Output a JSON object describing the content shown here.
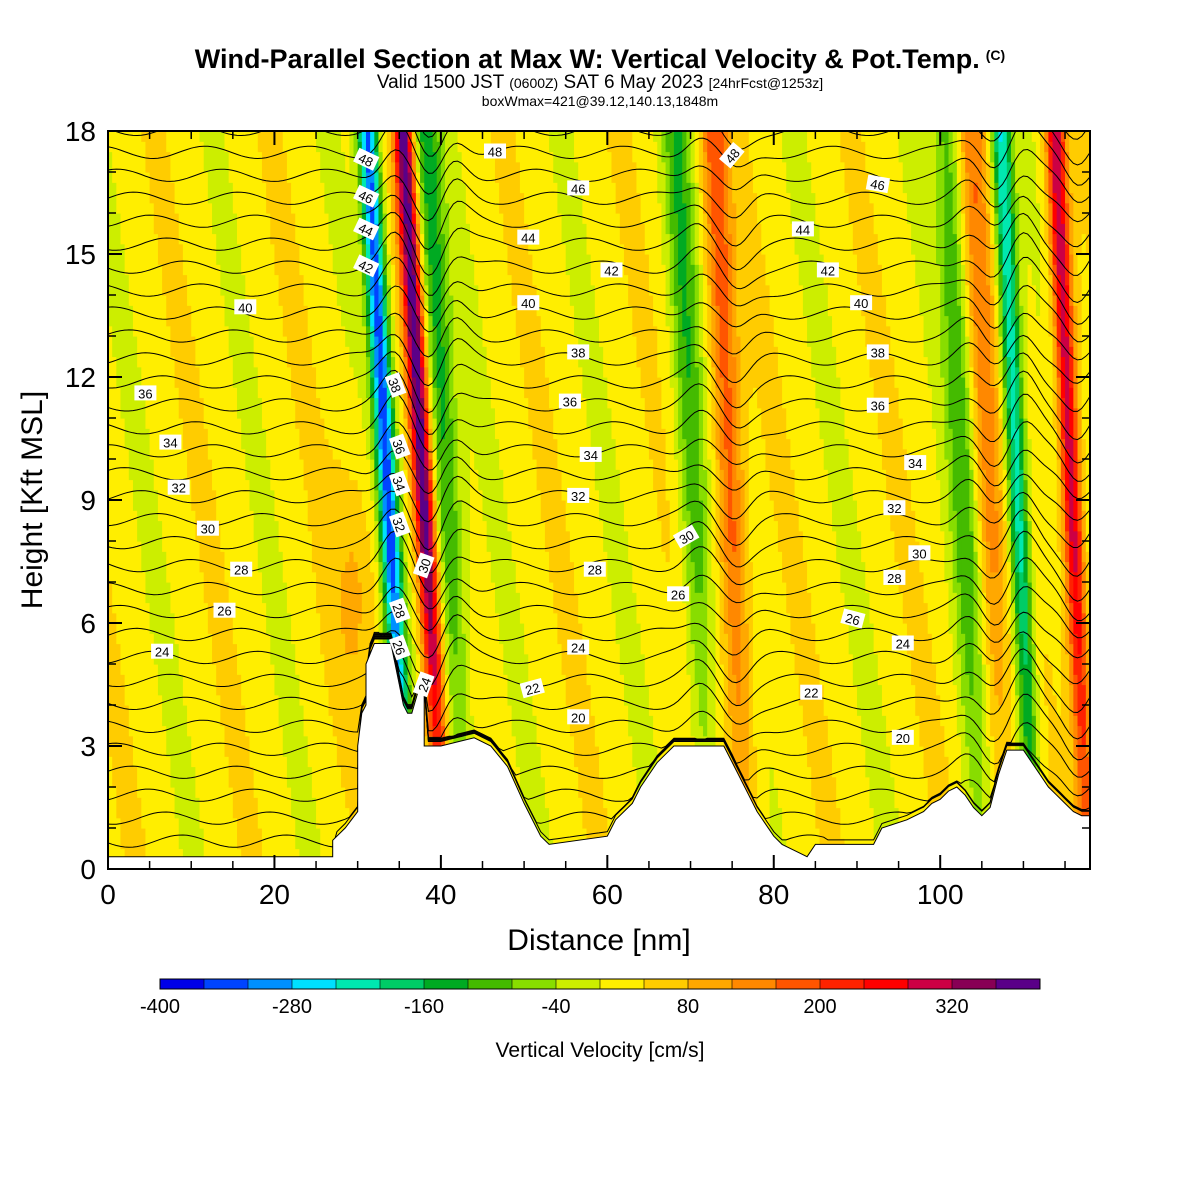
{
  "title": {
    "main": "Wind-Parallel Section at Max W: Vertical Velocity & Pot.Temp.",
    "copyright": "(C)",
    "valid_a": "Valid 1500 JST",
    "valid_zulu": "(0600Z)",
    "valid_b": "SAT 6 May 2023",
    "forecast": "[24hrFcst@1253z]",
    "box": "boxWmax=421@39.12,140.13,1848m"
  },
  "chart_data": {
    "type": "heatmap",
    "xlabel": "Distance [nm]",
    "ylabel": "Height [Kft MSL]",
    "xlim": [
      0,
      118
    ],
    "ylim": [
      0,
      18
    ],
    "x_ticks": [
      0,
      20,
      40,
      60,
      80,
      100
    ],
    "y_ticks": [
      0,
      3,
      6,
      9,
      12,
      15,
      18
    ],
    "colorbar": {
      "label": "Vertical Velocity [cm/s]",
      "tick_labels": [
        "-400",
        "-280",
        "-160",
        "-40",
        "80",
        "200",
        "320"
      ],
      "colors": [
        "#0000e8",
        "#0044ff",
        "#0090ff",
        "#00e0ff",
        "#00e8b0",
        "#00cc66",
        "#00aa22",
        "#44bb00",
        "#88dd00",
        "#ccee00",
        "#ffee00",
        "#ffcc00",
        "#ffa800",
        "#ff8800",
        "#ff5500",
        "#ff2200",
        "#ff0000",
        "#cc0044",
        "#880055",
        "#5a0088"
      ]
    },
    "w_bands": [
      {
        "x": 34.5,
        "peak": -360
      },
      {
        "x": 38.8,
        "peak": 360
      },
      {
        "x": 41.5,
        "peak": -160
      },
      {
        "x": 71.0,
        "peak": -130
      },
      {
        "x": 75.5,
        "peak": 170
      },
      {
        "x": 103.5,
        "peak": -120
      },
      {
        "x": 106.5,
        "peak": 120
      },
      {
        "x": 110.0,
        "peak": -260
      },
      {
        "x": 116.5,
        "peak": 300
      }
    ],
    "terrain": [
      [
        0,
        0.3
      ],
      [
        27,
        0.3
      ],
      [
        27,
        0.7
      ],
      [
        28.5,
        1.0
      ],
      [
        30,
        1.4
      ],
      [
        30,
        3.0
      ],
      [
        30.5,
        3.8
      ],
      [
        31,
        4.0
      ],
      [
        31,
        5.0
      ],
      [
        32,
        5.5
      ],
      [
        34,
        5.5
      ],
      [
        34.5,
        5.0
      ],
      [
        35,
        4.5
      ],
      [
        35.5,
        4.0
      ],
      [
        36,
        3.8
      ],
      [
        36.5,
        3.8
      ],
      [
        37.5,
        4.5
      ],
      [
        38,
        4.3
      ],
      [
        38,
        3.0
      ],
      [
        40,
        3.0
      ],
      [
        42,
        3.1
      ],
      [
        44,
        3.2
      ],
      [
        46,
        3.0
      ],
      [
        48,
        2.5
      ],
      [
        50,
        1.6
      ],
      [
        52,
        0.8
      ],
      [
        53,
        0.6
      ],
      [
        60,
        0.8
      ],
      [
        61,
        1.2
      ],
      [
        63,
        1.6
      ],
      [
        64,
        2.0
      ],
      [
        66,
        2.6
      ],
      [
        67,
        2.8
      ],
      [
        68,
        3.0
      ],
      [
        74,
        3.0
      ],
      [
        75,
        2.6
      ],
      [
        76,
        2.2
      ],
      [
        77,
        1.8
      ],
      [
        78,
        1.4
      ],
      [
        80,
        0.8
      ],
      [
        81,
        0.6
      ],
      [
        83,
        0.4
      ],
      [
        84,
        0.3
      ],
      [
        85,
        0.6
      ],
      [
        92,
        0.6
      ],
      [
        93,
        1.0
      ],
      [
        96,
        1.2
      ],
      [
        98,
        1.4
      ],
      [
        99,
        1.6
      ],
      [
        100,
        1.7
      ],
      [
        101,
        1.9
      ],
      [
        102,
        2.0
      ],
      [
        103,
        1.8
      ],
      [
        104,
        1.5
      ],
      [
        105,
        1.3
      ],
      [
        106,
        1.5
      ],
      [
        107,
        2.3
      ],
      [
        108,
        2.9
      ],
      [
        110,
        2.9
      ],
      [
        111,
        2.6
      ],
      [
        112,
        2.3
      ],
      [
        113,
        2.0
      ],
      [
        114,
        1.8
      ],
      [
        115,
        1.6
      ],
      [
        116,
        1.4
      ],
      [
        117,
        1.3
      ],
      [
        118,
        1.3
      ]
    ],
    "isotherm_labels": [
      {
        "text": "48",
        "x": 31.0,
        "y": 17.3,
        "rot": 25
      },
      {
        "text": "48",
        "x": 46.5,
        "y": 17.5,
        "rot": 0
      },
      {
        "text": "48",
        "x": 75.0,
        "y": 17.4,
        "rot": -50
      },
      {
        "text": "46",
        "x": 31.0,
        "y": 16.4,
        "rot": 25
      },
      {
        "text": "46",
        "x": 56.5,
        "y": 16.6,
        "rot": 0
      },
      {
        "text": "46",
        "x": 92.5,
        "y": 16.7,
        "rot": 10
      },
      {
        "text": "44",
        "x": 31.0,
        "y": 15.6,
        "rot": 25
      },
      {
        "text": "44",
        "x": 50.5,
        "y": 15.4,
        "rot": 0
      },
      {
        "text": "44",
        "x": 83.5,
        "y": 15.6,
        "rot": 0
      },
      {
        "text": "42",
        "x": 31.0,
        "y": 14.7,
        "rot": 25
      },
      {
        "text": "42",
        "x": 60.5,
        "y": 14.6,
        "rot": 0
      },
      {
        "text": "42",
        "x": 86.5,
        "y": 14.6,
        "rot": 0
      },
      {
        "text": "40",
        "x": 16.5,
        "y": 13.7,
        "rot": 0
      },
      {
        "text": "40",
        "x": 50.5,
        "y": 13.8,
        "rot": 0
      },
      {
        "text": "40",
        "x": 90.5,
        "y": 13.8,
        "rot": 0
      },
      {
        "text": "38",
        "x": 34.5,
        "y": 11.8,
        "rot": 70
      },
      {
        "text": "38",
        "x": 56.5,
        "y": 12.6,
        "rot": 0
      },
      {
        "text": "38",
        "x": 92.5,
        "y": 12.6,
        "rot": 0
      },
      {
        "text": "36",
        "x": 4.5,
        "y": 11.6,
        "rot": 0
      },
      {
        "text": "36",
        "x": 55.5,
        "y": 11.4,
        "rot": 0
      },
      {
        "text": "36",
        "x": 92.5,
        "y": 11.3,
        "rot": 0
      },
      {
        "text": "36",
        "x": 35.0,
        "y": 10.3,
        "rot": 70
      },
      {
        "text": "34",
        "x": 7.5,
        "y": 10.4,
        "rot": 0
      },
      {
        "text": "34",
        "x": 58.0,
        "y": 10.1,
        "rot": 0
      },
      {
        "text": "34",
        "x": 97.0,
        "y": 9.9,
        "rot": 0
      },
      {
        "text": "34",
        "x": 35.0,
        "y": 9.4,
        "rot": 70
      },
      {
        "text": "32",
        "x": 8.5,
        "y": 9.3,
        "rot": 0
      },
      {
        "text": "32",
        "x": 56.5,
        "y": 9.1,
        "rot": 0
      },
      {
        "text": "32",
        "x": 94.5,
        "y": 8.8,
        "rot": 0
      },
      {
        "text": "32",
        "x": 35.0,
        "y": 8.4,
        "rot": 70
      },
      {
        "text": "30",
        "x": 12.0,
        "y": 8.3,
        "rot": 0
      },
      {
        "text": "30",
        "x": 69.5,
        "y": 8.1,
        "rot": -30
      },
      {
        "text": "30",
        "x": 97.5,
        "y": 7.7,
        "rot": 0
      },
      {
        "text": "30",
        "x": 38.0,
        "y": 7.4,
        "rot": -70
      },
      {
        "text": "28",
        "x": 16.0,
        "y": 7.3,
        "rot": 0
      },
      {
        "text": "28",
        "x": 58.5,
        "y": 7.3,
        "rot": 0
      },
      {
        "text": "28",
        "x": 94.5,
        "y": 7.1,
        "rot": 0
      },
      {
        "text": "28",
        "x": 35.0,
        "y": 6.3,
        "rot": 70
      },
      {
        "text": "26",
        "x": 14.0,
        "y": 6.3,
        "rot": 0
      },
      {
        "text": "26",
        "x": 68.5,
        "y": 6.7,
        "rot": 0
      },
      {
        "text": "26",
        "x": 89.5,
        "y": 6.1,
        "rot": 15
      },
      {
        "text": "26",
        "x": 35.0,
        "y": 5.4,
        "rot": 70
      },
      {
        "text": "24",
        "x": 6.5,
        "y": 5.3,
        "rot": 0
      },
      {
        "text": "24",
        "x": 56.5,
        "y": 5.4,
        "rot": 0
      },
      {
        "text": "24",
        "x": 95.5,
        "y": 5.5,
        "rot": 0
      },
      {
        "text": "24",
        "x": 38.0,
        "y": 4.5,
        "rot": -70
      },
      {
        "text": "22",
        "x": 51.0,
        "y": 4.4,
        "rot": -15
      },
      {
        "text": "22",
        "x": 84.5,
        "y": 4.3,
        "rot": 0
      },
      {
        "text": "20",
        "x": 56.5,
        "y": 3.7,
        "rot": 0
      },
      {
        "text": "20",
        "x": 95.5,
        "y": 3.2,
        "rot": 0
      }
    ]
  }
}
